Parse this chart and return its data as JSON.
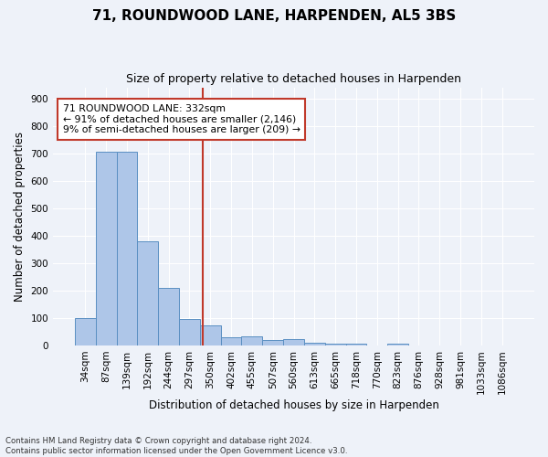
{
  "title": "71, ROUNDWOOD LANE, HARPENDEN, AL5 3BS",
  "subtitle": "Size of property relative to detached houses in Harpenden",
  "xlabel": "Distribution of detached houses by size in Harpenden",
  "ylabel": "Number of detached properties",
  "categories": [
    "34sqm",
    "87sqm",
    "139sqm",
    "192sqm",
    "244sqm",
    "297sqm",
    "350sqm",
    "402sqm",
    "455sqm",
    "507sqm",
    "560sqm",
    "613sqm",
    "665sqm",
    "718sqm",
    "770sqm",
    "823sqm",
    "876sqm",
    "928sqm",
    "981sqm",
    "1033sqm",
    "1086sqm"
  ],
  "values": [
    101,
    707,
    707,
    378,
    208,
    97,
    73,
    30,
    33,
    21,
    22,
    11,
    8,
    8,
    0,
    8,
    0,
    0,
    0,
    0,
    0
  ],
  "bar_color": "#aec6e8",
  "bar_edge_color": "#5a8fc2",
  "vline_color": "#c0392b",
  "annotation_text": "71 ROUNDWOOD LANE: 332sqm\n← 91% of detached houses are smaller (2,146)\n9% of semi-detached houses are larger (209) →",
  "annotation_box_color": "#ffffff",
  "annotation_box_edge": "#c0392b",
  "footer_text": "Contains HM Land Registry data © Crown copyright and database right 2024.\nContains public sector information licensed under the Open Government Licence v3.0.",
  "bg_color": "#eef2f9",
  "ylim": [
    0,
    940
  ],
  "yticks": [
    0,
    100,
    200,
    300,
    400,
    500,
    600,
    700,
    800,
    900
  ]
}
